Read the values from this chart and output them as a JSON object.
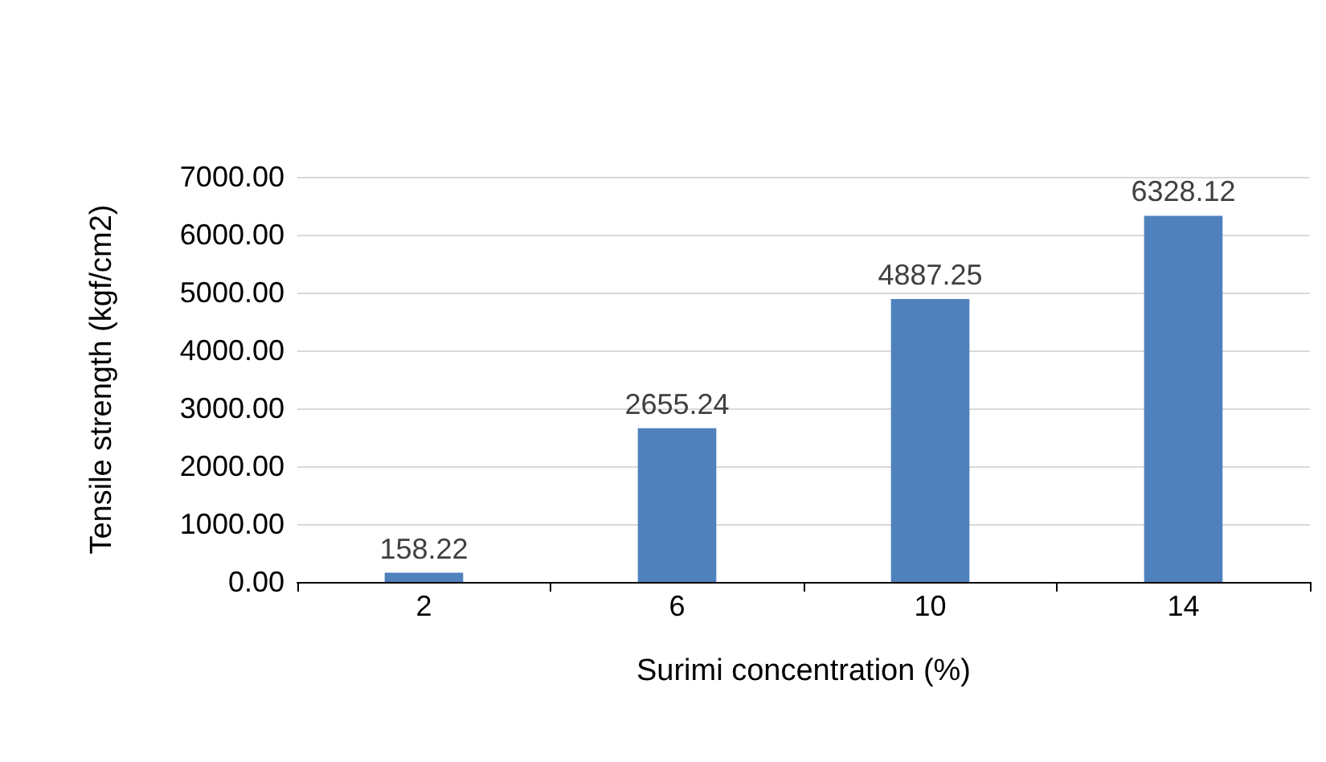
{
  "chart_data": {
    "type": "bar",
    "xlabel": "Surimi concentration (%)",
    "ylabel": "Tensile strength (kgf/cm2)",
    "categories": [
      "2",
      "6",
      "10",
      "14"
    ],
    "values": [
      158.22,
      2655.24,
      4887.25,
      6328.12
    ],
    "color": "#4f81bd",
    "ylim": [
      0,
      7000
    ],
    "yticks": [
      {
        "value": 0,
        "label": "0.00"
      },
      {
        "value": 1000,
        "label": "1000.00"
      },
      {
        "value": 2000,
        "label": "2000.00"
      },
      {
        "value": 3000,
        "label": "3000.00"
      },
      {
        "value": 4000,
        "label": "4000.00"
      },
      {
        "value": 5000,
        "label": "5000.00"
      },
      {
        "value": 6000,
        "label": "6000.00"
      },
      {
        "value": 7000,
        "label": "7000.00"
      }
    ],
    "grid": "y",
    "data_labels": true
  }
}
